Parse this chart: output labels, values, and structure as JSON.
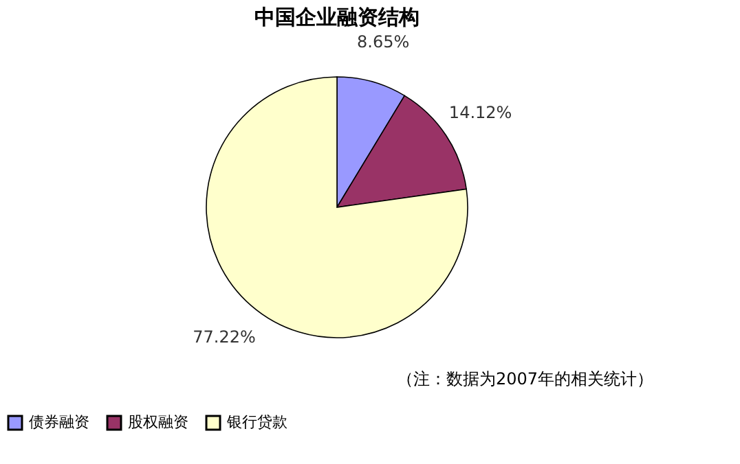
{
  "chart_data": {
    "type": "pie",
    "title": "中国企业融资结构",
    "categories": [
      "债券融资",
      "股权融资",
      "银行贷款"
    ],
    "values": [
      8.65,
      14.12,
      77.22
    ],
    "colors": [
      "#9999ff",
      "#993366",
      "#ffffcc"
    ],
    "value_labels": [
      "8.65%",
      "14.12%",
      "77.22%"
    ],
    "legend": "bottom",
    "annotations": [
      "（注：数据为2007年的相关统计）"
    ]
  }
}
